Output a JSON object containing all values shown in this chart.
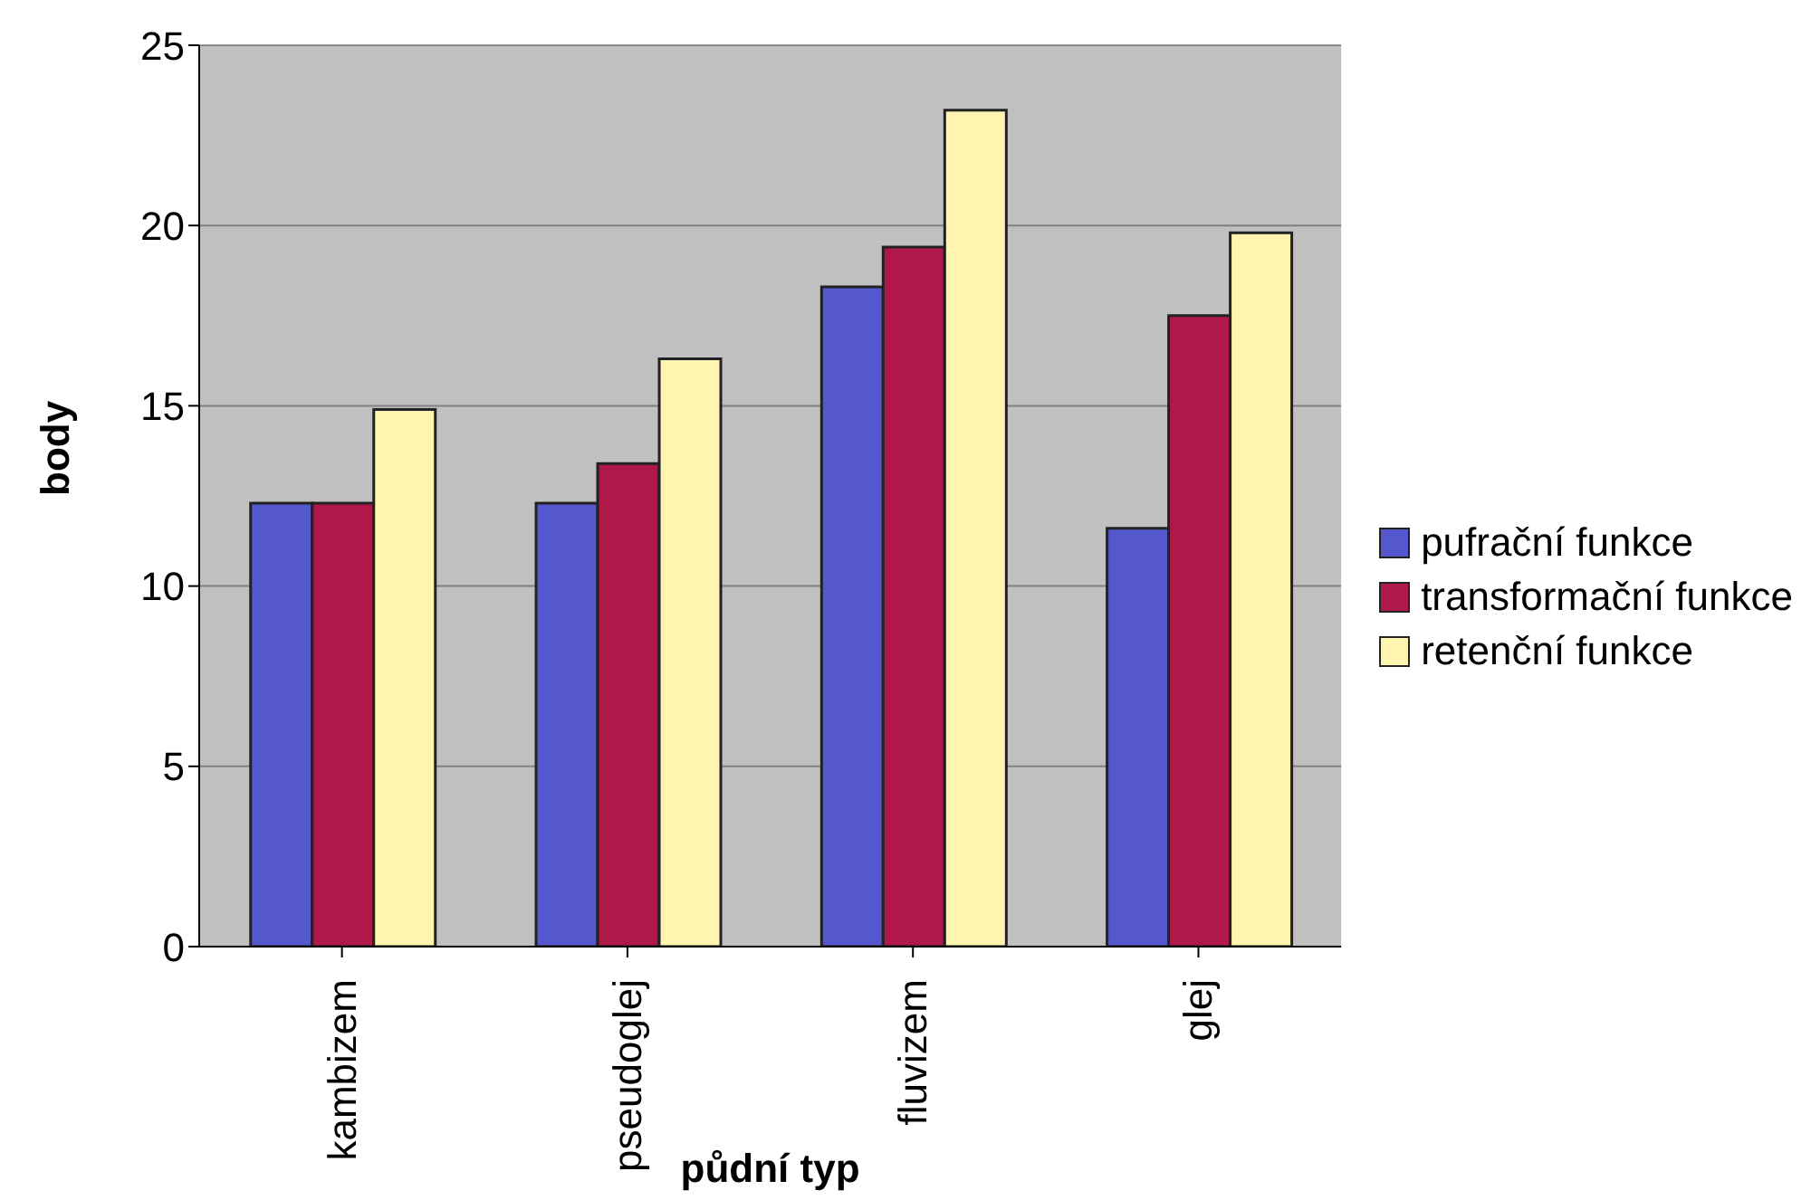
{
  "chart_data": {
    "type": "bar",
    "xlabel": "půdní typ",
    "ylabel": "body",
    "categories": [
      "kambizem",
      "pseudoglej",
      "fluvizem",
      "glej"
    ],
    "series": [
      {
        "name": "pufrační funkce",
        "color": "#5558cc",
        "values": [
          12.3,
          12.3,
          18.3,
          11.6
        ]
      },
      {
        "name": "transformační funkce",
        "color": "#b0184a",
        "values": [
          12.3,
          13.4,
          19.4,
          17.5
        ]
      },
      {
        "name": "retenční funkce",
        "color": "#fff5b0",
        "values": [
          14.9,
          16.3,
          23.2,
          19.8
        ]
      }
    ],
    "ylim": [
      0,
      25
    ],
    "yticks": [
      0,
      5,
      10,
      15,
      20,
      25
    ],
    "grid": "y",
    "legend": "right"
  }
}
